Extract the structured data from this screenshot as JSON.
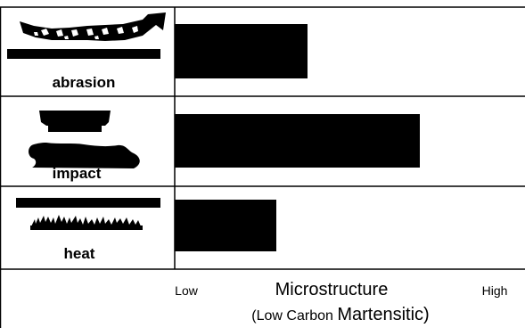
{
  "chart_data": {
    "type": "bar",
    "orientation": "horizontal",
    "categories": [
      "abrasion",
      "impact",
      "heat"
    ],
    "values": [
      0.38,
      0.7,
      0.29
    ],
    "bar_color": "#000000",
    "x_axis": {
      "low_label": "Low",
      "high_label": "High",
      "title": "Microstructure",
      "subtitle_prefix": "(Low Carbon ",
      "subtitle_main": "Martensitic)"
    },
    "icons": [
      "abrasion-icon",
      "impact-icon",
      "heat-icon"
    ],
    "grid": false
  }
}
